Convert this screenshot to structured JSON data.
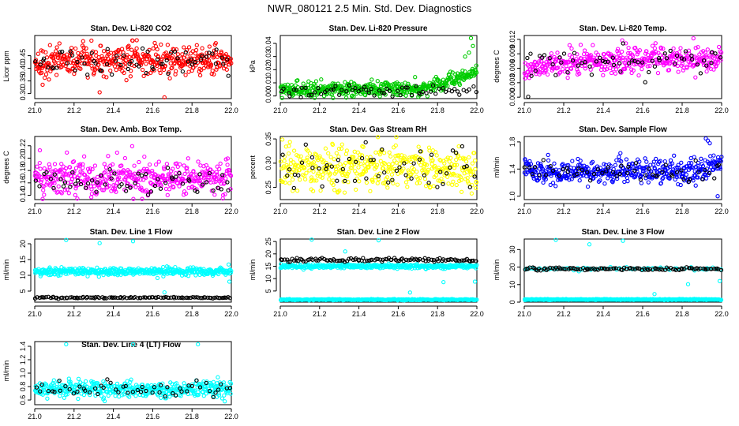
{
  "figure": {
    "title": "NWR_080121  2.5 Min. Std. Dev. Diagnostics",
    "background": "#ffffff"
  },
  "chart_data": [
    {
      "type": "scatter",
      "id": "co2",
      "title": "Stan. Dev. Li-820 CO2",
      "ylabel": "Licor ppm",
      "xlabel": "",
      "xlim": [
        21.0,
        22.0
      ],
      "ylim": [
        0.28,
        0.53
      ],
      "xticks": [
        "21.0",
        "21.2",
        "21.4",
        "21.6",
        "21.8",
        "22.0"
      ],
      "yticks": [
        "0.30",
        "0.35",
        "0.40",
        "0.45"
      ],
      "color": "#ff0000",
      "main_series": {
        "n": 430,
        "center": 0.43,
        "spread": 0.035,
        "outliers": [
          [
            21.33,
            0.305
          ],
          [
            21.66,
            0.285
          ],
          [
            21.04,
            0.335
          ]
        ]
      },
      "black_series": {
        "n": 65,
        "center": 0.43,
        "spread": 0.035
      }
    },
    {
      "type": "scatter",
      "id": "pressure",
      "title": "Stan. Dev. Li-820 Pressure",
      "ylabel": "kPa",
      "xlabel": "",
      "xlim": [
        21.0,
        22.0
      ],
      "ylim": [
        -0.002,
        0.046
      ],
      "xticks": [
        "21.0",
        "21.2",
        "21.4",
        "21.6",
        "21.8",
        "22.0"
      ],
      "yticks": [
        "0.00",
        "0.01",
        "0.02",
        "0.03",
        "0.04"
      ],
      "color": "#00cc00",
      "main_series": {
        "n": 460,
        "center": 0.005,
        "spread": 0.003,
        "rising_after": 21.72,
        "rise_to": 0.013,
        "outliers": [
          [
            21.97,
            0.044
          ],
          [
            21.98,
            0.038
          ],
          [
            21.96,
            0.033
          ],
          [
            21.94,
            0.03
          ]
        ]
      },
      "black_series": {
        "n": 65,
        "center": 0.004,
        "spread": 0.003
      }
    },
    {
      "type": "scatter",
      "id": "temp",
      "title": "Stan. Dev. Li-820 Temp.",
      "ylabel": "degrees C",
      "xlabel": "",
      "xlim": [
        21.0,
        22.0
      ],
      "ylim": [
        -0.0003,
        0.0128
      ],
      "xticks": [
        "21.0",
        "21.2",
        "21.4",
        "21.6",
        "21.8",
        "22.0"
      ],
      "yticks": [
        "0.000",
        "0.003",
        "0.006",
        "0.009",
        "0.012"
      ],
      "color": "#ff00ff",
      "main_series": {
        "n": 430,
        "center": 0.0078,
        "spread": 0.0015,
        "ramp_from": 0.0058,
        "ramp_until": 21.3
      },
      "black_series": {
        "n": 60,
        "center": 0.0075,
        "spread": 0.0018,
        "outliers": [
          [
            21.02,
            0.0001
          ]
        ]
      }
    },
    {
      "type": "scatter",
      "id": "ambbox",
      "title": "Stan. Dev. Amb. Box Temp.",
      "ylabel": "degrees C",
      "xlabel": "",
      "xlim": [
        21.0,
        22.0
      ],
      "ylim": [
        0.133,
        0.235
      ],
      "xticks": [
        "21.0",
        "21.2",
        "21.4",
        "21.6",
        "21.8",
        "22.0"
      ],
      "yticks": [
        "0.14",
        "0.16",
        "0.18",
        "0.20",
        "0.22"
      ],
      "color": "#ff00ff",
      "main_series": {
        "n": 430,
        "center": 0.168,
        "spread": 0.018
      },
      "black_series": {
        "n": 60,
        "center": 0.16,
        "spread": 0.012
      }
    },
    {
      "type": "scatter",
      "id": "rh",
      "title": "Stan. Dev. Gas Stream RH",
      "ylabel": "percent",
      "xlabel": "",
      "xlim": [
        21.0,
        22.0
      ],
      "ylim": [
        0.225,
        0.355
      ],
      "xticks": [
        "21.0",
        "21.2",
        "21.4",
        "21.6",
        "21.8",
        "22.0"
      ],
      "yticks": [
        "0.25",
        "0.30",
        "0.35"
      ],
      "color": "#ffff00",
      "main_series": {
        "n": 430,
        "center": 0.29,
        "spread": 0.025
      },
      "black_series": {
        "n": 55,
        "center": 0.285,
        "spread": 0.028
      }
    },
    {
      "type": "scatter",
      "id": "sampleflow",
      "title": "Stan. Dev. Sample Flow",
      "ylabel": "ml/min",
      "xlabel": "",
      "xlim": [
        21.0,
        22.0
      ],
      "ylim": [
        0.95,
        1.88
      ],
      "xticks": [
        "21.0",
        "21.2",
        "21.4",
        "21.6",
        "21.8",
        "22.0"
      ],
      "yticks": [
        "1.0",
        "1.4",
        "1.8"
      ],
      "color": "#0000ff",
      "main_series": {
        "n": 430,
        "center": 1.36,
        "spread": 0.1,
        "rising_after": 21.85,
        "rise_to": 0.15,
        "outliers": [
          [
            21.92,
            1.85
          ],
          [
            21.93,
            1.82
          ],
          [
            21.94,
            1.78
          ],
          [
            21.98,
            1.0
          ]
        ]
      },
      "black_series": {
        "n": 55,
        "center": 1.36,
        "spread": 0.08
      }
    },
    {
      "type": "scatter",
      "id": "line1",
      "title": "Stan. Dev. Line 1 Flow",
      "ylabel": "ml/min",
      "xlabel": "",
      "xlim": [
        21.0,
        22.0
      ],
      "ylim": [
        1.5,
        21.5
      ],
      "xticks": [
        "21.0",
        "21.2",
        "21.4",
        "21.6",
        "21.8",
        "22.0"
      ],
      "yticks": [
        "5",
        "10",
        "15",
        "20"
      ],
      "color": "#00ffff",
      "main_series": {
        "n": 450,
        "center": 11.2,
        "spread": 0.7,
        "outliers": [
          [
            21.16,
            21.2
          ],
          [
            21.33,
            20.2
          ],
          [
            21.5,
            20.8
          ],
          [
            21.66,
            4.6
          ],
          [
            21.99,
            8.0
          ]
        ]
      },
      "black_series": {
        "n": 110,
        "center": 2.9,
        "spread": 0.15
      }
    },
    {
      "type": "scatter",
      "id": "line2",
      "title": "Stan. Dev. Line 2 Flow",
      "ylabel": "ml/min",
      "xlabel": "",
      "xlim": [
        21.0,
        22.0
      ],
      "ylim": [
        0.5,
        26.0
      ],
      "xticks": [
        "21.0",
        "21.2",
        "21.4",
        "21.6",
        "21.8",
        "22.0"
      ],
      "yticks": [
        "5",
        "10",
        "15",
        "20",
        "25"
      ],
      "color": "#00ffff",
      "main_series": {
        "n": 400,
        "center": 15.0,
        "spread": 0.5,
        "outliers": [
          [
            21.16,
            25.8
          ],
          [
            21.33,
            21.0
          ],
          [
            21.5,
            25.5
          ],
          [
            21.66,
            4.4
          ],
          [
            21.83,
            8.6
          ],
          [
            21.99,
            8.8
          ]
        ]
      },
      "band_series": {
        "n": 350,
        "center": 1.5,
        "spread": 0.12
      },
      "black_series": {
        "n": 110,
        "center": 17.6,
        "spread": 0.45
      }
    },
    {
      "type": "scatter",
      "id": "line3",
      "title": "Stan. Dev. Line 3 Flow",
      "ylabel": "ml/min",
      "xlabel": "",
      "xlim": [
        21.0,
        22.0
      ],
      "ylim": [
        0.0,
        36.0
      ],
      "xticks": [
        "21.0",
        "21.2",
        "21.4",
        "21.6",
        "21.8",
        "22.0"
      ],
      "yticks": [
        "0",
        "10",
        "20",
        "30"
      ],
      "color": "#00ffff",
      "main_series": {
        "n": 80,
        "center": 19.0,
        "spread": 0.5,
        "outliers": [
          [
            21.16,
            35.5
          ],
          [
            21.33,
            33.0
          ],
          [
            21.5,
            35.0
          ],
          [
            21.66,
            4.6
          ],
          [
            21.83,
            10.2
          ],
          [
            21.99,
            12.0
          ]
        ]
      },
      "band_series": {
        "n": 380,
        "center": 1.5,
        "spread": 0.15
      },
      "black_series": {
        "n": 110,
        "center": 19.0,
        "spread": 0.45
      }
    },
    {
      "type": "scatter",
      "id": "line4",
      "title": "Stan. Dev. Line 4 (LT) Flow",
      "ylabel": "ml/min",
      "xlabel": "",
      "xlim": [
        21.0,
        22.0
      ],
      "ylim": [
        0.53,
        1.47
      ],
      "xticks": [
        "21.0",
        "21.2",
        "21.4",
        "21.6",
        "21.8",
        "22.0"
      ],
      "yticks": [
        "0.6",
        "0.8",
        "1.0",
        "1.2",
        "1.4"
      ],
      "color": "#00ffff",
      "main_series": {
        "n": 430,
        "center": 0.76,
        "spread": 0.07,
        "outliers": [
          [
            21.16,
            1.43
          ],
          [
            21.5,
            1.43
          ],
          [
            21.83,
            1.43
          ]
        ]
      },
      "black_series": {
        "n": 55,
        "center": 0.76,
        "spread": 0.07
      }
    }
  ]
}
